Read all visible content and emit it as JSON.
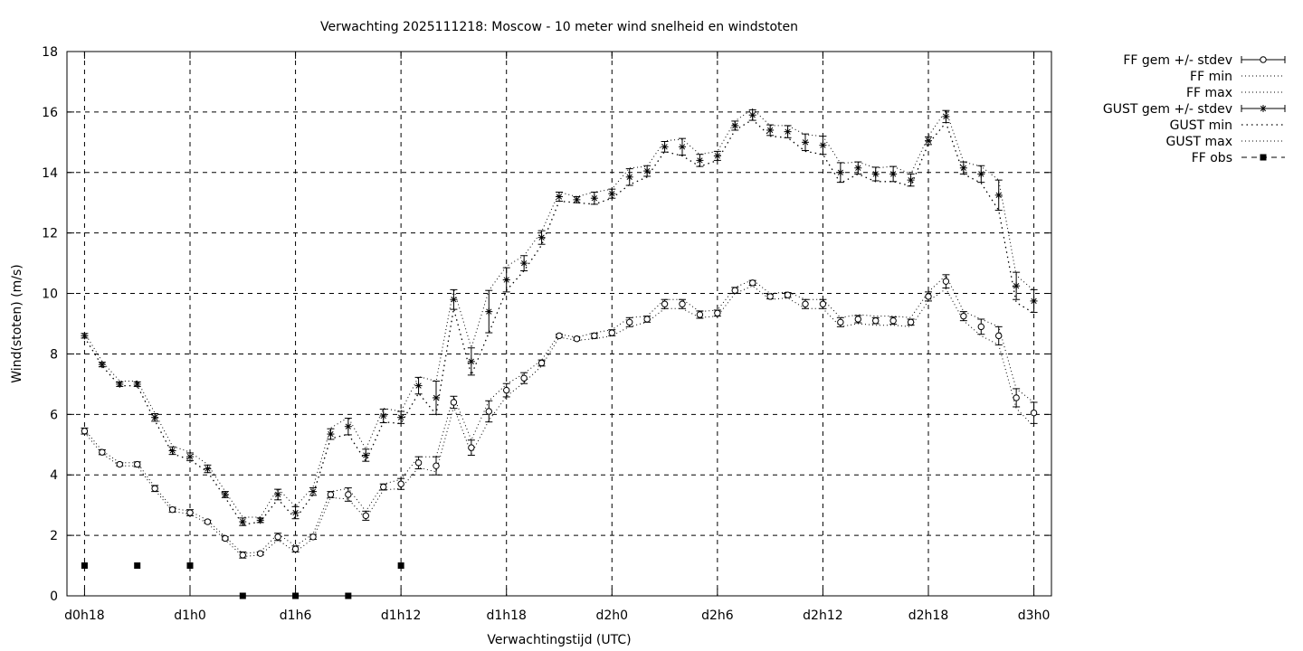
{
  "chart_data": {
    "type": "line",
    "title": "Verwachting 2025111218: Moscow - 10 meter wind snelheid en windstoten",
    "xlabel": "Verwachtingstijd (UTC)",
    "ylabel": "Wind(stoten) (m/s)",
    "xlim": [
      -1,
      55
    ],
    "ylim": [
      0,
      18
    ],
    "grid": true,
    "legend_position": "right, outside plot",
    "x_hours_from_d0h18": [
      0,
      1,
      2,
      3,
      4,
      5,
      6,
      7,
      8,
      9,
      10,
      11,
      12,
      13,
      14,
      15,
      16,
      17,
      18,
      19,
      20,
      21,
      22,
      23,
      24,
      25,
      26,
      27,
      28,
      29,
      30,
      31,
      32,
      33,
      34,
      35,
      36,
      37,
      38,
      39,
      40,
      41,
      42,
      43,
      44,
      45,
      46,
      47,
      48,
      49,
      50,
      51,
      52,
      53,
      54
    ],
    "x_ticks": [
      {
        "x": 0,
        "label": "d0h18"
      },
      {
        "x": 6,
        "label": "d1h0"
      },
      {
        "x": 12,
        "label": "d1h6"
      },
      {
        "x": 18,
        "label": "d1h12"
      },
      {
        "x": 24,
        "label": "d1h18"
      },
      {
        "x": 30,
        "label": "d2h0"
      },
      {
        "x": 36,
        "label": "d2h6"
      },
      {
        "x": 42,
        "label": "d2h12"
      },
      {
        "x": 48,
        "label": "d2h18"
      },
      {
        "x": 54,
        "label": "d3h0"
      }
    ],
    "y_ticks": [
      0,
      2,
      4,
      6,
      8,
      10,
      12,
      14,
      16,
      18
    ],
    "legend": [
      {
        "label": "FF gem +/- stdev",
        "style": "errorbar-circle"
      },
      {
        "label": "FF min",
        "style": "dotted"
      },
      {
        "label": "FF max",
        "style": "dotted"
      },
      {
        "label": "GUST gem +/- stdev",
        "style": "errorbar-star"
      },
      {
        "label": "GUST min",
        "style": "dotted-wide"
      },
      {
        "label": "GUST max",
        "style": "dotted"
      },
      {
        "label": "FF obs",
        "style": "dashed-square"
      }
    ],
    "series": [
      {
        "name": "FF gem +/- stdev",
        "values": [
          5.45,
          4.75,
          4.35,
          4.35,
          3.55,
          2.85,
          2.75,
          2.45,
          1.9,
          1.35,
          1.4,
          1.95,
          1.55,
          1.95,
          3.35,
          3.35,
          2.65,
          3.6,
          3.7,
          4.4,
          4.3,
          6.4,
          4.9,
          6.1,
          6.8,
          7.2,
          7.7,
          8.6,
          8.5,
          8.6,
          8.7,
          9.05,
          9.15,
          9.65,
          9.65,
          9.3,
          9.35,
          10.1,
          10.35,
          9.9,
          9.95,
          9.65,
          9.65,
          9.05,
          9.15,
          9.1,
          9.1,
          9.05,
          9.9,
          10.4,
          9.25,
          8.9,
          8.6,
          6.55,
          6.05
        ],
        "stdev": [
          0.1,
          0.08,
          0.05,
          0.08,
          0.1,
          0.08,
          0.1,
          0.05,
          0.05,
          0.1,
          0.05,
          0.12,
          0.1,
          0.08,
          0.1,
          0.22,
          0.15,
          0.1,
          0.18,
          0.2,
          0.3,
          0.2,
          0.25,
          0.35,
          0.22,
          0.18,
          0.1,
          0.05,
          0.05,
          0.08,
          0.1,
          0.15,
          0.1,
          0.15,
          0.15,
          0.12,
          0.1,
          0.1,
          0.08,
          0.08,
          0.08,
          0.15,
          0.15,
          0.15,
          0.12,
          0.1,
          0.12,
          0.1,
          0.15,
          0.22,
          0.15,
          0.25,
          0.3,
          0.3,
          0.35
        ]
      },
      {
        "name": "FF min",
        "values": [
          5.4,
          4.7,
          4.3,
          4.3,
          3.5,
          2.8,
          2.7,
          2.4,
          1.85,
          1.3,
          1.35,
          1.85,
          1.45,
          1.9,
          3.25,
          3.2,
          2.55,
          3.5,
          3.55,
          4.25,
          4.1,
          6.25,
          4.7,
          5.8,
          6.6,
          7.05,
          7.6,
          8.55,
          8.45,
          8.5,
          8.6,
          8.9,
          9.05,
          9.5,
          9.5,
          9.2,
          9.25,
          10.0,
          10.25,
          9.8,
          9.85,
          9.5,
          9.5,
          8.9,
          9.0,
          8.95,
          8.95,
          8.9,
          9.75,
          10.15,
          9.1,
          8.6,
          8.3,
          6.2,
          5.6
        ]
      },
      {
        "name": "FF max",
        "values": [
          5.5,
          4.8,
          4.4,
          4.4,
          3.6,
          2.9,
          2.8,
          2.5,
          1.95,
          1.4,
          1.45,
          2.05,
          1.65,
          2.05,
          3.45,
          3.55,
          2.8,
          3.7,
          3.85,
          4.6,
          4.6,
          6.6,
          5.15,
          6.45,
          7.0,
          7.35,
          7.8,
          8.65,
          8.55,
          8.7,
          8.8,
          9.2,
          9.25,
          9.8,
          9.8,
          9.4,
          9.45,
          10.2,
          10.45,
          10.0,
          10.05,
          9.8,
          9.8,
          9.2,
          9.3,
          9.25,
          9.25,
          9.2,
          10.05,
          10.6,
          9.4,
          9.15,
          8.9,
          6.85,
          6.4
        ]
      },
      {
        "name": "GUST gem +/- stdev",
        "values": [
          8.6,
          7.65,
          7.0,
          7.0,
          5.9,
          4.8,
          4.6,
          4.2,
          3.35,
          2.45,
          2.5,
          3.35,
          2.75,
          3.45,
          5.35,
          5.6,
          4.65,
          5.95,
          5.9,
          6.95,
          6.55,
          9.8,
          7.75,
          9.4,
          10.45,
          11.0,
          11.85,
          13.2,
          13.1,
          13.15,
          13.3,
          13.85,
          14.05,
          14.85,
          14.85,
          14.4,
          14.55,
          15.55,
          15.9,
          15.4,
          15.35,
          15.0,
          14.9,
          14.0,
          14.15,
          13.95,
          13.95,
          13.75,
          15.05,
          15.85,
          14.15,
          13.95,
          13.25,
          10.25,
          9.75
        ]
      },
      {
        "name": "GUST min",
        "values": [
          8.55,
          7.6,
          6.95,
          6.95,
          5.8,
          4.7,
          4.5,
          4.1,
          3.25,
          2.35,
          2.45,
          3.2,
          2.55,
          3.35,
          5.2,
          5.35,
          4.45,
          5.75,
          5.7,
          6.7,
          6.0,
          9.5,
          7.3,
          8.7,
          10.1,
          10.75,
          11.6,
          13.05,
          13.0,
          12.95,
          13.15,
          13.6,
          13.85,
          14.7,
          14.55,
          14.2,
          14.4,
          15.4,
          15.75,
          15.2,
          15.15,
          14.7,
          14.6,
          13.65,
          13.95,
          13.7,
          13.7,
          13.55,
          14.95,
          15.65,
          13.95,
          13.65,
          12.75,
          9.7,
          9.35
        ]
      },
      {
        "name": "GUST max",
        "values": [
          8.7,
          7.75,
          7.1,
          7.1,
          6.05,
          4.95,
          4.75,
          4.35,
          3.45,
          2.6,
          2.6,
          3.55,
          2.95,
          3.6,
          5.55,
          5.9,
          4.85,
          6.2,
          6.1,
          7.25,
          7.1,
          10.15,
          8.2,
          10.1,
          10.9,
          11.25,
          12.05,
          13.35,
          13.2,
          13.35,
          13.45,
          14.15,
          14.2,
          15.05,
          15.1,
          14.6,
          14.7,
          15.7,
          16.1,
          15.55,
          15.55,
          15.25,
          15.2,
          14.3,
          14.35,
          14.15,
          14.2,
          13.95,
          15.2,
          16.05,
          14.35,
          14.2,
          13.75,
          10.6,
          10.1
        ]
      },
      {
        "name": "FF obs",
        "points": [
          {
            "x": 0,
            "y": 1
          },
          {
            "x": 3,
            "y": 1
          },
          {
            "x": 6,
            "y": 1
          },
          {
            "x": 9,
            "y": 0
          },
          {
            "x": 12,
            "y": 0
          },
          {
            "x": 15,
            "y": 0
          },
          {
            "x": 18,
            "y": 1
          }
        ]
      }
    ]
  }
}
